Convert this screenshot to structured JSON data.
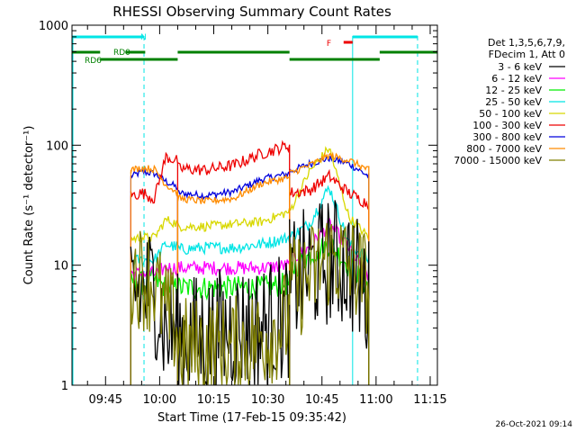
{
  "chart_data": {
    "type": "line",
    "title": "RHESSI Observing Summary Count Rates",
    "xlabel": "Start Time (17-Feb-15 09:35:42)",
    "ylabel": "Count Rate (s⁻¹ detector⁻¹)",
    "yscale": "log",
    "ylim": [
      1,
      1000
    ],
    "xlim": [
      "09:35:42",
      "11:17:00"
    ],
    "x_ticks": [
      "09:45",
      "10:00",
      "10:15",
      "10:30",
      "10:45",
      "11:00",
      "11:15"
    ],
    "y_ticks": [
      "1",
      "10",
      "100",
      "1000"
    ],
    "timestamp": "26-Oct-2021 09:14",
    "legend": {
      "placement": "right",
      "header": [
        "Det 1,3,5,6,7,9,",
        "FDecim 1, Att 0"
      ],
      "entries": [
        {
          "label": "3 - 6 keV",
          "color": "#000000"
        },
        {
          "label": "6 - 12 keV",
          "color": "#ff00ff"
        },
        {
          "label": "12 - 25 keV",
          "color": "#00ee00"
        },
        {
          "label": "25 - 50 keV",
          "color": "#00e5e5"
        },
        {
          "label": "50 - 100 keV",
          "color": "#d8d800"
        },
        {
          "label": "100 - 300 keV",
          "color": "#ee0000"
        },
        {
          "label": "300 - 800 keV",
          "color": "#0000dd"
        },
        {
          "label": "800 - 7000 keV",
          "color": "#ff8c00"
        },
        {
          "label": "7000 - 15000 keV",
          "color": "#808000"
        }
      ]
    },
    "night_intervals": [
      [
        "09:35:42",
        "09:55:40"
      ],
      [
        "11:06:00",
        "11:17:00"
      ]
    ],
    "saa_lines": [
      {
        "time": "09:55:40",
        "style": "dashed"
      },
      {
        "time": "10:53:30",
        "style": "solid"
      },
      {
        "time": "11:11:30",
        "style": "dashed"
      }
    ],
    "flag_labels": [
      {
        "text": "N",
        "color": "#00e5e5"
      },
      {
        "text": "RD0",
        "color": "#008000"
      },
      {
        "text": "RD6",
        "color": "#008000"
      },
      {
        "text": "F",
        "color": "#ee0000"
      }
    ],
    "segments_start": [
      "09:52:00",
      "10:05:00",
      "10:36:00"
    ],
    "segments_end": [
      "10:05:00",
      "10:36:00",
      "10:58:00"
    ],
    "series": [
      {
        "name": "3 - 6 keV",
        "color": "#000000",
        "noise": 0.55,
        "values": [
          [
            6.5,
            6
          ],
          [
            6.5,
            5.5
          ],
          [
            2.8,
            3
          ],
          [
            2.5,
            2.5
          ],
          [
            3,
            3.5
          ],
          [
            3,
            4
          ],
          [
            7,
            9
          ],
          [
            11,
            12
          ],
          [
            10,
            5
          ]
        ]
      },
      {
        "name": "6 - 12 keV",
        "color": "#ff00ff",
        "noise": 0.06,
        "values": [
          [
            8.5,
            8.5
          ],
          [
            8.5,
            8.5
          ],
          [
            9.5,
            9.5
          ],
          [
            9.5,
            9.5
          ],
          [
            9.5,
            9.5
          ],
          [
            9.5,
            10
          ],
          [
            11,
            14
          ],
          [
            22,
            30
          ],
          [
            14,
            8
          ]
        ]
      },
      {
        "name": "12 - 25 keV",
        "color": "#00ee00",
        "noise": 0.1,
        "values": [
          [
            7.5,
            7
          ],
          [
            7.5,
            7.5
          ],
          [
            6.5,
            6.5
          ],
          [
            6.5,
            6.5
          ],
          [
            6.5,
            6.5
          ],
          [
            6.5,
            7
          ],
          [
            9,
            12
          ],
          [
            15,
            14
          ],
          [
            10,
            6.5
          ]
        ]
      },
      {
        "name": "25 - 50 keV",
        "color": "#00e5e5",
        "noise": 0.05,
        "values": [
          [
            11,
            11
          ],
          [
            11,
            11
          ],
          [
            15,
            14
          ],
          [
            13.5,
            14
          ],
          [
            14,
            15
          ],
          [
            15,
            17
          ],
          [
            17,
            22
          ],
          [
            45,
            35
          ],
          [
            15,
            11
          ]
        ]
      },
      {
        "name": "50 - 100 keV",
        "color": "#d8d800",
        "noise": 0.04,
        "values": [
          [
            16.5,
            17
          ],
          [
            17,
            17
          ],
          [
            24,
            22
          ],
          [
            21,
            21
          ],
          [
            22,
            23
          ],
          [
            23,
            28
          ],
          [
            28,
            60
          ],
          [
            95,
            90
          ],
          [
            25,
            17
          ]
        ]
      },
      {
        "name": "100 - 300 keV",
        "color": "#ee0000",
        "noise": 0.05,
        "values": [
          [
            38,
            40
          ],
          [
            36,
            34
          ],
          [
            80,
            74
          ],
          [
            64,
            62
          ],
          [
            68,
            78
          ],
          [
            85,
            100
          ],
          [
            40,
            42
          ],
          [
            55,
            60
          ],
          [
            40,
            32
          ]
        ]
      },
      {
        "name": "300 - 800 keV",
        "color": "#0000dd",
        "noise": 0.03,
        "values": [
          [
            55,
            60
          ],
          [
            58,
            50
          ],
          [
            50,
            44
          ],
          [
            40,
            38
          ],
          [
            41,
            45
          ],
          [
            52,
            58
          ],
          [
            60,
            70
          ],
          [
            78,
            78
          ],
          [
            70,
            55
          ]
        ]
      },
      {
        "name": "800 - 7000 keV",
        "color": "#ff8c00",
        "noise": 0.03,
        "values": [
          [
            62,
            65
          ],
          [
            63,
            55
          ],
          [
            47,
            40
          ],
          [
            36,
            34
          ],
          [
            36,
            41
          ],
          [
            48,
            54
          ],
          [
            58,
            68
          ],
          [
            82,
            82
          ],
          [
            75,
            62
          ]
        ]
      },
      {
        "name": "7000 - 15000 keV",
        "color": "#808000",
        "noise": 0.45,
        "values": [
          [
            9,
            8
          ],
          [
            7,
            5
          ],
          [
            4,
            3
          ],
          [
            2,
            2
          ],
          [
            2,
            2.5
          ],
          [
            2.5,
            3.5
          ],
          [
            6,
            8
          ],
          [
            12,
            13
          ],
          [
            10,
            7
          ]
        ]
      }
    ]
  }
}
